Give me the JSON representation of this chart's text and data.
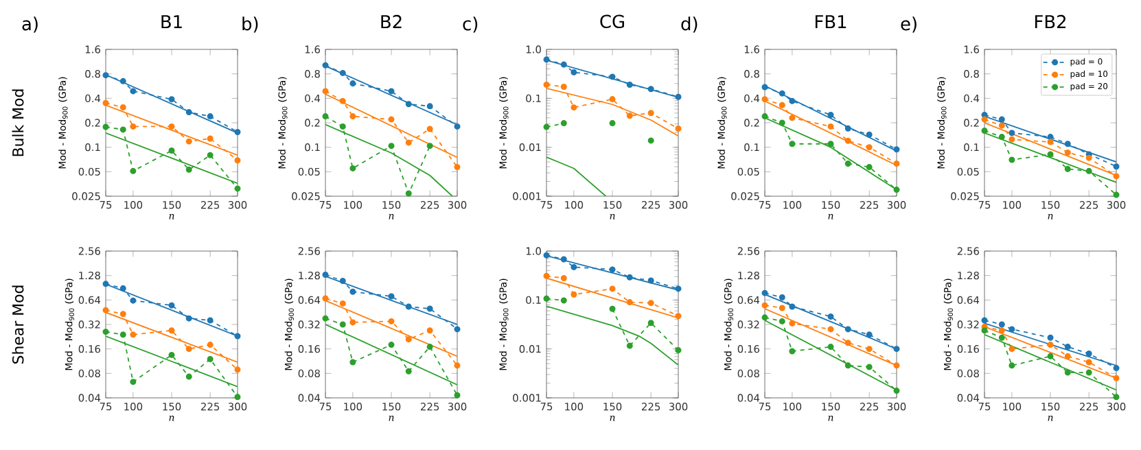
{
  "chart_data": [
    {
      "type": "line",
      "title": "B1",
      "annotations": [
        "a)",
        "Bulk Mod"
      ],
      "xlabel": "n",
      "ylabel": "Mod - Mod$_{900}$ (GPa)",
      "log": "xy",
      "xlim": [
        75,
        300
      ],
      "xticks": [
        75,
        100,
        150,
        225,
        300
      ],
      "ylim": [
        0.025,
        1.6
      ],
      "yticks": [
        0.025,
        0.05,
        0.1,
        0.2,
        0.4,
        0.8,
        1.6
      ],
      "series": [
        {
          "color": "#1f77b4",
          "marker": "circle",
          "line_style": "dashed",
          "x": [
            75,
            90,
            100,
            150,
            180,
            225,
            300
          ],
          "values": [
            0.77,
            0.65,
            0.49,
            0.39,
            0.27,
            0.24,
            0.154
          ]
        },
        {
          "color": "#ff7f0e",
          "marker": "circle",
          "line_style": "dashed",
          "x": [
            75,
            90,
            100,
            150,
            180,
            225,
            300
          ],
          "values": [
            0.35,
            0.31,
            0.18,
            0.18,
            0.118,
            0.128,
            0.069
          ]
        },
        {
          "color": "#2ca02c",
          "marker": "circle",
          "line_style": "dashed",
          "x": [
            75,
            90,
            100,
            150,
            180,
            225,
            300
          ],
          "values": [
            0.178,
            0.165,
            0.051,
            0.091,
            0.053,
            0.08,
            0.031
          ]
        },
        {
          "color": "#1f77b4",
          "marker": "none",
          "line_style": "solid",
          "x": [
            75,
            300
          ],
          "values": [
            0.78,
            0.15
          ]
        },
        {
          "color": "#ff7f0e",
          "marker": "none",
          "line_style": "solid",
          "x": [
            75,
            300
          ],
          "values": [
            0.33,
            0.08
          ]
        },
        {
          "color": "#2ca02c",
          "marker": "none",
          "line_style": "solid",
          "x": [
            75,
            300
          ],
          "values": [
            0.15,
            0.036
          ]
        }
      ]
    },
    {
      "type": "line",
      "title": "B2",
      "annotations": [
        "b)"
      ],
      "xlabel": "n",
      "ylabel": "Mod - Mod$_{900}$ (GPa)",
      "log": "xy",
      "xlim": [
        75,
        300
      ],
      "xticks": [
        75,
        100,
        150,
        225,
        300
      ],
      "ylim": [
        0.025,
        1.6
      ],
      "yticks": [
        0.025,
        0.05,
        0.1,
        0.2,
        0.4,
        0.8,
        1.6
      ],
      "series": [
        {
          "color": "#1f77b4",
          "marker": "circle",
          "line_style": "dashed",
          "x": [
            75,
            90,
            100,
            150,
            180,
            225,
            300
          ],
          "values": [
            1.02,
            0.82,
            0.61,
            0.49,
            0.34,
            0.32,
            0.18
          ]
        },
        {
          "color": "#ff7f0e",
          "marker": "circle",
          "line_style": "dashed",
          "x": [
            75,
            90,
            100,
            150,
            180,
            225,
            300
          ],
          "values": [
            0.49,
            0.37,
            0.24,
            0.22,
            0.114,
            0.168,
            0.057
          ]
        },
        {
          "color": "#2ca02c",
          "marker": "circle",
          "line_style": "dashed",
          "x": [
            75,
            90,
            100,
            150,
            180,
            225
          ],
          "values": [
            0.24,
            0.18,
            0.055,
            0.104,
            0.027,
            0.104
          ]
        },
        {
          "color": "#1f77b4",
          "marker": "none",
          "line_style": "solid",
          "x": [
            75,
            300
          ],
          "values": [
            1.0,
            0.19
          ]
        },
        {
          "color": "#ff7f0e",
          "marker": "none",
          "line_style": "solid",
          "x": [
            75,
            300
          ],
          "values": [
            0.45,
            0.075
          ]
        },
        {
          "color": "#2ca02c",
          "marker": "none",
          "line_style": "solid",
          "x": [
            75,
            150,
            225,
            285
          ],
          "values": [
            0.19,
            0.085,
            0.045,
            0.025
          ]
        }
      ]
    },
    {
      "type": "line",
      "title": "CG",
      "annotations": [
        "c)"
      ],
      "xlabel": "n",
      "ylabel": "Mod - Mod$_{900}$ (GPa)",
      "log": "xy",
      "xlim": [
        75,
        300
      ],
      "xticks": [
        75,
        100,
        150,
        225,
        300
      ],
      "ylim": [
        0.001,
        1
      ],
      "yticks": [
        0.001,
        0.01,
        0.1,
        {
          "value": 1,
          "label": "1.0"
        }
      ],
      "series": [
        {
          "color": "#1f77b4",
          "marker": "circle",
          "line_style": "dashed",
          "x": [
            75,
            90,
            100,
            150,
            180,
            225,
            300
          ],
          "values": [
            0.62,
            0.49,
            0.34,
            0.276,
            0.19,
            0.155,
            0.107
          ]
        },
        {
          "color": "#ff7f0e",
          "marker": "circle",
          "line_style": "dashed",
          "x": [
            75,
            90,
            100,
            150,
            180,
            225,
            300
          ],
          "values": [
            0.19,
            0.172,
            0.065,
            0.096,
            0.044,
            0.05,
            0.024
          ]
        },
        {
          "color": "#2ca02c",
          "marker": "circle",
          "line_style": "dashed",
          "x": [
            75,
            90,
            100,
            150,
            180,
            225
          ],
          "values": [
            0.026,
            0.031,
            null,
            0.031,
            null,
            0.0137
          ]
        },
        {
          "color": "#1f77b4",
          "marker": "none",
          "line_style": "solid",
          "x": [
            75,
            300
          ],
          "values": [
            0.6,
            0.105
          ]
        },
        {
          "color": "#ff7f0e",
          "marker": "none",
          "line_style": "solid",
          "x": [
            75,
            150,
            225,
            300
          ],
          "values": [
            0.16,
            0.075,
            0.036,
            0.017
          ]
        },
        {
          "color": "#2ca02c",
          "marker": "none",
          "line_style": "solid",
          "x": [
            75,
            100,
            140
          ],
          "values": [
            0.0063,
            0.0037,
            0.001
          ]
        }
      ]
    },
    {
      "type": "line",
      "title": "FB1",
      "annotations": [
        "d)"
      ],
      "xlabel": "n",
      "ylabel": "Mod - Mod$_{900}$ (GPa)",
      "log": "xy",
      "xlim": [
        75,
        300
      ],
      "xticks": [
        75,
        100,
        150,
        225,
        300
      ],
      "ylim": [
        0.025,
        1.6
      ],
      "yticks": [
        0.025,
        0.05,
        0.1,
        0.2,
        0.4,
        0.8,
        1.6
      ],
      "series": [
        {
          "color": "#1f77b4",
          "marker": "circle",
          "line_style": "dashed",
          "x": [
            75,
            90,
            100,
            150,
            180,
            225,
            300
          ],
          "values": [
            0.55,
            0.46,
            0.37,
            0.25,
            0.17,
            0.143,
            0.094
          ]
        },
        {
          "color": "#ff7f0e",
          "marker": "circle",
          "line_style": "dashed",
          "x": [
            75,
            90,
            100,
            150,
            180,
            225,
            300
          ],
          "values": [
            0.39,
            0.33,
            0.23,
            0.18,
            0.12,
            0.1,
            0.063
          ]
        },
        {
          "color": "#2ca02c",
          "marker": "circle",
          "line_style": "dashed",
          "x": [
            75,
            90,
            100,
            150,
            180,
            225,
            300
          ],
          "values": [
            0.24,
            0.2,
            0.11,
            0.11,
            0.063,
            0.057,
            0.03
          ]
        },
        {
          "color": "#1f77b4",
          "marker": "none",
          "line_style": "solid",
          "x": [
            75,
            300
          ],
          "values": [
            0.57,
            0.09
          ]
        },
        {
          "color": "#ff7f0e",
          "marker": "none",
          "line_style": "solid",
          "x": [
            75,
            300
          ],
          "values": [
            0.37,
            0.06
          ]
        },
        {
          "color": "#2ca02c",
          "marker": "none",
          "line_style": "solid",
          "x": [
            75,
            150,
            300
          ],
          "values": [
            0.23,
            0.1,
            0.03
          ]
        }
      ]
    },
    {
      "type": "line",
      "title": "FB2",
      "annotations": [
        "e)"
      ],
      "xlabel": "n",
      "ylabel": "Mod - Mod$_{900}$ (GPa)",
      "log": "xy",
      "xlim": [
        75,
        300
      ],
      "xticks": [
        75,
        100,
        150,
        225,
        300
      ],
      "ylim": [
        0.025,
        1.6
      ],
      "yticks": [
        0.025,
        0.05,
        0.1,
        0.2,
        0.4,
        0.8,
        1.6
      ],
      "legend": "top right",
      "series": [
        {
          "name": "pad = 0",
          "color": "#1f77b4",
          "marker": "circle",
          "line_style": "dashed",
          "x": [
            75,
            90,
            100,
            150,
            180,
            225,
            300
          ],
          "values": [
            0.25,
            0.22,
            0.15,
            0.134,
            0.11,
            0.082,
            0.058
          ]
        },
        {
          "name": "pad = 10",
          "color": "#ff7f0e",
          "marker": "circle",
          "line_style": "dashed",
          "x": [
            75,
            90,
            100,
            150,
            180,
            225,
            300
          ],
          "values": [
            0.22,
            0.185,
            0.125,
            0.116,
            0.086,
            0.074,
            0.044
          ]
        },
        {
          "name": "pad = 20",
          "color": "#2ca02c",
          "marker": "circle",
          "line_style": "dashed",
          "x": [
            75,
            90,
            100,
            150,
            180,
            225,
            300
          ],
          "values": [
            0.16,
            0.134,
            0.07,
            0.082,
            0.054,
            0.051,
            0.026
          ]
        },
        {
          "color": "#1f77b4",
          "marker": "none",
          "line_style": "solid",
          "x": [
            75,
            300
          ],
          "values": [
            0.24,
            0.066
          ]
        },
        {
          "color": "#ff7f0e",
          "marker": "none",
          "line_style": "solid",
          "x": [
            75,
            300
          ],
          "values": [
            0.2,
            0.045
          ]
        },
        {
          "color": "#2ca02c",
          "marker": "none",
          "line_style": "solid",
          "x": [
            75,
            300
          ],
          "values": [
            0.15,
            0.037
          ]
        }
      ]
    },
    {
      "type": "line",
      "annotations": [
        "Shear Mod"
      ],
      "xlabel": "n",
      "ylabel": "Mod - Mod$_{900}$ (GPa)",
      "log": "xy",
      "xlim": [
        75,
        300
      ],
      "xticks": [
        75,
        100,
        150,
        225,
        300
      ],
      "ylim": [
        0.04,
        2.56
      ],
      "yticks": [
        0.04,
        0.08,
        0.16,
        0.32,
        0.64,
        1.28,
        2.56
      ],
      "series": [
        {
          "color": "#1f77b4",
          "marker": "circle",
          "line_style": "dashed",
          "x": [
            75,
            90,
            100,
            150,
            180,
            225,
            300
          ],
          "values": [
            1.01,
            0.89,
            0.63,
            0.55,
            0.38,
            0.36,
            0.23
          ]
        },
        {
          "color": "#ff7f0e",
          "marker": "circle",
          "line_style": "dashed",
          "x": [
            75,
            90,
            100,
            150,
            180,
            225,
            300
          ],
          "values": [
            0.48,
            0.43,
            0.24,
            0.27,
            0.16,
            0.18,
            0.089
          ]
        },
        {
          "color": "#2ca02c",
          "marker": "circle",
          "line_style": "dashed",
          "x": [
            75,
            90,
            100,
            150,
            180,
            225,
            300
          ],
          "values": [
            0.26,
            0.24,
            0.063,
            0.135,
            0.073,
            0.12,
            0.041
          ]
        },
        {
          "color": "#1f77b4",
          "marker": "none",
          "line_style": "solid",
          "x": [
            75,
            300
          ],
          "values": [
            1.0,
            0.23
          ]
        },
        {
          "color": "#ff7f0e",
          "marker": "none",
          "line_style": "solid",
          "x": [
            75,
            300
          ],
          "values": [
            0.45,
            0.11
          ]
        },
        {
          "color": "#2ca02c",
          "marker": "none",
          "line_style": "solid",
          "x": [
            75,
            300
          ],
          "values": [
            0.23,
            0.055
          ]
        }
      ]
    },
    {
      "type": "line",
      "xlabel": "n",
      "ylabel": "Mod - Mod$_{900}$ (GPa)",
      "log": "xy",
      "xlim": [
        75,
        300
      ],
      "xticks": [
        75,
        100,
        150,
        225,
        300
      ],
      "ylim": [
        0.04,
        2.56
      ],
      "yticks": [
        0.04,
        0.08,
        0.16,
        0.32,
        0.64,
        1.28,
        2.56
      ],
      "series": [
        {
          "color": "#1f77b4",
          "marker": "circle",
          "line_style": "dashed",
          "x": [
            75,
            90,
            100,
            150,
            180,
            225,
            300
          ],
          "values": [
            1.31,
            1.1,
            0.81,
            0.71,
            0.53,
            0.5,
            0.28
          ]
        },
        {
          "color": "#ff7f0e",
          "marker": "circle",
          "line_style": "dashed",
          "x": [
            75,
            90,
            100,
            150,
            180,
            225,
            300
          ],
          "values": [
            0.67,
            0.58,
            0.34,
            0.35,
            0.21,
            0.27,
            0.1
          ]
        },
        {
          "color": "#2ca02c",
          "marker": "circle",
          "line_style": "dashed",
          "x": [
            75,
            90,
            100,
            150,
            180,
            225,
            300
          ],
          "values": [
            0.38,
            0.32,
            0.11,
            0.18,
            0.085,
            0.17,
            0.043
          ]
        },
        {
          "color": "#1f77b4",
          "marker": "none",
          "line_style": "solid",
          "x": [
            75,
            300
          ],
          "values": [
            1.25,
            0.32
          ]
        },
        {
          "color": "#ff7f0e",
          "marker": "none",
          "line_style": "solid",
          "x": [
            75,
            300
          ],
          "values": [
            0.63,
            0.13
          ]
        },
        {
          "color": "#2ca02c",
          "marker": "none",
          "line_style": "solid",
          "x": [
            75,
            300
          ],
          "values": [
            0.32,
            0.058
          ]
        }
      ]
    },
    {
      "type": "line",
      "xlabel": "n",
      "ylabel": "Mod - Mod$_{900}$ (GPa)",
      "log": "xy",
      "xlim": [
        75,
        300
      ],
      "xticks": [
        75,
        100,
        150,
        225,
        300
      ],
      "ylim": [
        0.001,
        1
      ],
      "yticks": [
        0.001,
        0.01,
        0.1,
        {
          "value": 1,
          "label": "1.0"
        }
      ],
      "series": [
        {
          "color": "#1f77b4",
          "marker": "circle",
          "line_style": "dashed",
          "x": [
            75,
            90,
            100,
            150,
            180,
            225,
            300
          ],
          "values": [
            0.82,
            0.68,
            0.47,
            0.42,
            0.29,
            0.25,
            0.17
          ]
        },
        {
          "color": "#ff7f0e",
          "marker": "circle",
          "line_style": "dashed",
          "x": [
            75,
            90,
            100,
            150,
            180,
            225,
            300
          ],
          "values": [
            0.31,
            0.28,
            0.13,
            0.17,
            0.09,
            0.087,
            0.047
          ]
        },
        {
          "color": "#2ca02c",
          "marker": "circle",
          "line_style": "dashed",
          "x": [
            75,
            90,
            100,
            150,
            180,
            225,
            300
          ],
          "values": [
            0.107,
            0.098,
            null,
            0.066,
            0.0116,
            0.034,
            0.0094
          ]
        },
        {
          "color": "#1f77b4",
          "marker": "none",
          "line_style": "solid",
          "x": [
            75,
            300
          ],
          "values": [
            0.8,
            0.16
          ]
        },
        {
          "color": "#ff7f0e",
          "marker": "none",
          "line_style": "solid",
          "x": [
            75,
            300
          ],
          "values": [
            0.28,
            0.043
          ]
        },
        {
          "color": "#2ca02c",
          "marker": "none",
          "line_style": "solid",
          "x": [
            75,
            150,
            200,
            225,
            300
          ],
          "values": [
            0.075,
            0.03,
            0.018,
            0.013,
            0.0047
          ]
        }
      ]
    },
    {
      "type": "line",
      "xlabel": "n",
      "ylabel": "Mod - Mod$_{900}$ (GPa)",
      "log": "xy",
      "xlim": [
        75,
        300
      ],
      "xticks": [
        75,
        100,
        150,
        225,
        300
      ],
      "ylim": [
        0.04,
        2.56
      ],
      "yticks": [
        0.04,
        0.08,
        0.16,
        0.32,
        0.64,
        1.28,
        2.56
      ],
      "series": [
        {
          "color": "#1f77b4",
          "marker": "circle",
          "line_style": "dashed",
          "x": [
            75,
            90,
            100,
            150,
            180,
            225,
            300
          ],
          "values": [
            0.78,
            0.69,
            0.53,
            0.4,
            0.28,
            0.24,
            0.16
          ]
        },
        {
          "color": "#ff7f0e",
          "marker": "circle",
          "line_style": "dashed",
          "x": [
            75,
            90,
            100,
            150,
            180,
            225,
            300
          ],
          "values": [
            0.55,
            0.51,
            0.33,
            0.28,
            0.19,
            0.16,
            0.1
          ]
        },
        {
          "color": "#2ca02c",
          "marker": "circle",
          "line_style": "dashed",
          "x": [
            75,
            90,
            100,
            150,
            180,
            225,
            300
          ],
          "values": [
            0.39,
            0.35,
            0.15,
            0.17,
            0.1,
            0.096,
            0.049
          ]
        },
        {
          "color": "#1f77b4",
          "marker": "none",
          "line_style": "solid",
          "x": [
            75,
            300
          ],
          "values": [
            0.75,
            0.16
          ]
        },
        {
          "color": "#ff7f0e",
          "marker": "none",
          "line_style": "solid",
          "x": [
            75,
            300
          ],
          "values": [
            0.5,
            0.1
          ]
        },
        {
          "color": "#2ca02c",
          "marker": "none",
          "line_style": "solid",
          "x": [
            75,
            300
          ],
          "values": [
            0.36,
            0.05
          ]
        }
      ]
    },
    {
      "type": "line",
      "xlabel": "n",
      "ylabel": "Mod - Mod$_{900}$ (GPa)",
      "log": "xy",
      "xlim": [
        75,
        300
      ],
      "xticks": [
        75,
        100,
        150,
        225,
        300
      ],
      "ylim": [
        0.04,
        2.56
      ],
      "yticks": [
        0.04,
        0.08,
        0.16,
        0.32,
        0.64,
        1.28,
        2.56
      ],
      "series": [
        {
          "color": "#1f77b4",
          "marker": "circle",
          "line_style": "dashed",
          "x": [
            75,
            90,
            100,
            150,
            180,
            225,
            300
          ],
          "values": [
            0.36,
            0.32,
            0.28,
            0.22,
            0.17,
            0.14,
            0.093
          ]
        },
        {
          "color": "#ff7f0e",
          "marker": "circle",
          "line_style": "dashed",
          "x": [
            75,
            90,
            100,
            150,
            180,
            225,
            300
          ],
          "values": [
            0.3,
            0.27,
            0.16,
            0.18,
            0.13,
            0.11,
            0.07
          ]
        },
        {
          "color": "#2ca02c",
          "marker": "circle",
          "line_style": "dashed",
          "x": [
            75,
            90,
            100,
            150,
            180,
            225,
            300
          ],
          "values": [
            0.27,
            0.22,
            0.1,
            0.13,
            0.082,
            0.082,
            0.041
          ]
        },
        {
          "color": "#1f77b4",
          "marker": "none",
          "line_style": "solid",
          "x": [
            75,
            300
          ],
          "values": [
            0.33,
            0.1
          ]
        },
        {
          "color": "#ff7f0e",
          "marker": "none",
          "line_style": "solid",
          "x": [
            75,
            300
          ],
          "values": [
            0.3,
            0.07
          ]
        },
        {
          "color": "#2ca02c",
          "marker": "none",
          "line_style": "solid",
          "x": [
            75,
            300
          ],
          "values": [
            0.24,
            0.05
          ]
        }
      ]
    }
  ]
}
